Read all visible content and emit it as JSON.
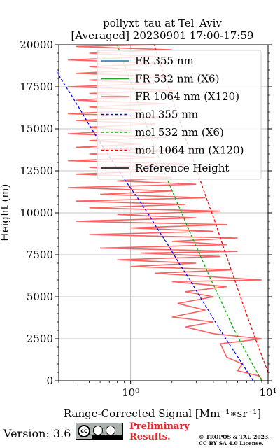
{
  "chart_data": {
    "type": "line",
    "title": "pollyxt_tau at Tel_Aviv",
    "subtitle": "[Averaged] 20230901 17:00-17:59",
    "xlabel": "Range-Corrected Signal [Mm⁻¹∗sr⁻¹]",
    "ylabel": "Height (m)",
    "xscale": "log",
    "xlim": [
      0.3,
      10
    ],
    "ylim": [
      0,
      20000
    ],
    "y_ticks": [
      0,
      2500,
      5000,
      7500,
      10000,
      12500,
      15000,
      17500,
      20000
    ],
    "y_tick_labels": [
      "0",
      "2500",
      "5000",
      "7500",
      "10000",
      "12500",
      "15000",
      "17500",
      "20000"
    ],
    "x_ticks": [
      1,
      10
    ],
    "x_tick_labels": [
      "10⁰",
      "10¹"
    ],
    "grid": true,
    "legend_position": "top-right",
    "legend": [
      {
        "label": "FR 355 nm",
        "color": "#1f77b4",
        "style": "solid"
      },
      {
        "label": "FR 532 nm (X6)",
        "color": "#2ca02c",
        "style": "solid"
      },
      {
        "label": "FR 1064 nm (X120)",
        "color": "#ff6161",
        "style": "solid"
      },
      {
        "label": "mol 355 nm",
        "color": "#0000ff",
        "style": "dashed"
      },
      {
        "label": "mol 532 nm (X6)",
        "color": "#00b300",
        "style": "dashed"
      },
      {
        "label": "mol 1064 nm (X120)",
        "color": "#ff0000",
        "style": "dashed"
      },
      {
        "label": "Reference Height",
        "color": "#000000",
        "style": "solid"
      }
    ],
    "series": [
      {
        "name": "mol 355 nm",
        "color": "#0000ff",
        "style": "dashed",
        "points": [
          [
            7.8,
            0
          ],
          [
            6.5,
            1000
          ],
          [
            5.4,
            2000
          ],
          [
            4.5,
            3000
          ],
          [
            3.8,
            4000
          ],
          [
            3.2,
            5000
          ],
          [
            2.7,
            6000
          ],
          [
            2.25,
            7000
          ],
          [
            1.9,
            8000
          ],
          [
            1.58,
            9000
          ],
          [
            1.33,
            10000
          ],
          [
            1.1,
            11000
          ],
          [
            0.9,
            12000
          ],
          [
            0.75,
            13000
          ],
          [
            0.62,
            14000
          ],
          [
            0.52,
            15000
          ],
          [
            0.44,
            16000
          ],
          [
            0.37,
            17000
          ],
          [
            0.31,
            18000
          ],
          [
            0.29,
            18400
          ]
        ]
      },
      {
        "name": "mol 532 nm (X6)",
        "color": "#00b300",
        "style": "dashed",
        "points": [
          [
            9.0,
            0
          ],
          [
            7.7,
            1000
          ],
          [
            6.6,
            2000
          ],
          [
            5.7,
            3000
          ],
          [
            5.0,
            4000
          ],
          [
            4.4,
            5000
          ],
          [
            3.85,
            6000
          ],
          [
            3.4,
            7000
          ],
          [
            3.0,
            8000
          ],
          [
            2.65,
            9000
          ],
          [
            2.35,
            10000
          ],
          [
            2.08,
            11000
          ],
          [
            1.85,
            12000
          ],
          [
            1.65,
            13000
          ],
          [
            1.48,
            14000
          ],
          [
            1.33,
            15000
          ],
          [
            1.2,
            16000
          ],
          [
            1.08,
            17000
          ],
          [
            0.98,
            18000
          ],
          [
            0.88,
            19000
          ],
          [
            0.8,
            20000
          ]
        ]
      },
      {
        "name": "mol 1064 nm (X120)",
        "color": "#ff0000",
        "style": "dashed",
        "points": [
          [
            10.0,
            500
          ],
          [
            9.0,
            1500
          ],
          [
            8.1,
            2500
          ],
          [
            7.3,
            3500
          ],
          [
            6.6,
            4500
          ],
          [
            6.0,
            5500
          ],
          [
            5.45,
            6500
          ],
          [
            4.95,
            7500
          ],
          [
            4.5,
            8500
          ],
          [
            4.1,
            9500
          ],
          [
            3.7,
            10500
          ],
          [
            3.35,
            11500
          ],
          [
            3.05,
            12500
          ],
          [
            2.75,
            13500
          ],
          [
            2.5,
            14500
          ],
          [
            2.27,
            15500
          ],
          [
            2.06,
            16500
          ],
          [
            1.88,
            17500
          ],
          [
            1.7,
            18500
          ],
          [
            1.55,
            19500
          ],
          [
            1.48,
            20000
          ]
        ]
      },
      {
        "name": "FR 1064 nm (X120)",
        "color": "#ff6161",
        "style": "solid",
        "points": [
          [
            9.0,
            100
          ],
          [
            8.5,
            300
          ],
          [
            6.0,
            600
          ],
          [
            6.5,
            1000
          ],
          [
            5.0,
            1400
          ],
          [
            4.5,
            2200
          ],
          [
            9.0,
            2500
          ],
          [
            4.0,
            2800
          ],
          [
            2.5,
            3200
          ],
          [
            4.0,
            3500
          ],
          [
            2.0,
            3800
          ],
          [
            3.5,
            4200
          ],
          [
            2.2,
            4600
          ],
          [
            4.0,
            5000
          ],
          [
            2.5,
            5300
          ],
          [
            5.0,
            5600
          ],
          [
            2.0,
            5900
          ],
          [
            9.0,
            6000
          ],
          [
            1.5,
            6400
          ],
          [
            5.5,
            6600
          ],
          [
            1.0,
            6800
          ],
          [
            3.0,
            7000
          ],
          [
            0.8,
            7200
          ],
          [
            4.5,
            7400
          ],
          [
            1.2,
            7600
          ],
          [
            6.0,
            7700
          ],
          [
            0.6,
            7900
          ],
          [
            5.0,
            8100
          ],
          [
            2.0,
            8300
          ],
          [
            6.0,
            8500
          ],
          [
            0.5,
            8700
          ],
          [
            4.0,
            8900
          ],
          [
            1.0,
            9100
          ],
          [
            5.0,
            9300
          ],
          [
            0.4,
            9500
          ],
          [
            3.0,
            9700
          ],
          [
            0.8,
            9900
          ],
          [
            4.5,
            10100
          ],
          [
            0.5,
            10300
          ],
          [
            2.5,
            10500
          ],
          [
            0.4,
            10700
          ],
          [
            3.5,
            10900
          ],
          [
            0.6,
            11100
          ],
          [
            2.0,
            11300
          ],
          [
            0.35,
            11500
          ],
          [
            3.0,
            11700
          ],
          [
            0.8,
            11900
          ],
          [
            2.0,
            12100
          ],
          [
            0.4,
            12300
          ],
          [
            1.5,
            12500
          ],
          [
            0.5,
            12700
          ],
          [
            2.5,
            12900
          ],
          [
            0.35,
            13100
          ],
          [
            1.5,
            13300
          ],
          [
            0.5,
            13500
          ],
          [
            2.0,
            13700
          ],
          [
            0.4,
            13900
          ],
          [
            1.2,
            14100
          ],
          [
            0.5,
            14300
          ],
          [
            1.8,
            14500
          ],
          [
            0.35,
            14700
          ],
          [
            1.0,
            14900
          ],
          [
            0.5,
            15100
          ],
          [
            1.5,
            15300
          ],
          [
            0.4,
            15500
          ],
          [
            2.0,
            15700
          ],
          [
            0.35,
            15900
          ],
          [
            1.2,
            16100
          ],
          [
            0.5,
            16300
          ],
          [
            1.8,
            16500
          ],
          [
            0.4,
            16700
          ],
          [
            1.0,
            16900
          ],
          [
            0.5,
            17100
          ],
          [
            2.2,
            17300
          ],
          [
            0.35,
            17500
          ],
          [
            1.5,
            17700
          ],
          [
            0.5,
            17900
          ],
          [
            2.0,
            18100
          ],
          [
            0.4,
            18300
          ],
          [
            1.2,
            18500
          ],
          [
            0.5,
            18700
          ],
          [
            1.8,
            18900
          ],
          [
            0.35,
            19100
          ],
          [
            1.5,
            19300
          ],
          [
            0.5,
            19500
          ],
          [
            2.0,
            19700
          ],
          [
            0.4,
            19900
          ],
          [
            1.5,
            20000
          ]
        ]
      }
    ]
  },
  "footer": {
    "version": "Version: 3.6",
    "preliminary_line1": "Preliminary",
    "preliminary_line2": "Results.",
    "copyright_line1": "© TROPOS & TAU 2023.",
    "copyright_line2": "CC BY SA 4.0 License."
  }
}
